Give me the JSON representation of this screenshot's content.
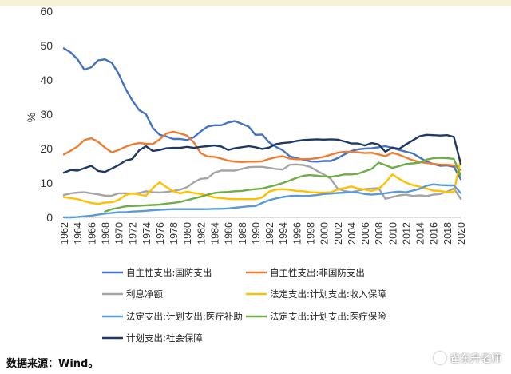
{
  "chart_data": {
    "type": "line",
    "ylabel": "%",
    "ylim": [
      0,
      60
    ],
    "yticks": [
      0,
      10,
      20,
      30,
      40,
      50,
      60
    ],
    "xticks": [
      "1962",
      "1964",
      "1966",
      "1968",
      "1970",
      "1972",
      "1974",
      "1976",
      "1978",
      "1980",
      "1982",
      "1984",
      "1986",
      "1988",
      "1990",
      "1992",
      "1994",
      "1996",
      "1998",
      "2000",
      "2002",
      "2004",
      "2006",
      "2008",
      "2010",
      "2012",
      "2014",
      "2016",
      "2018",
      "2020"
    ],
    "x": [
      1962,
      1963,
      1964,
      1965,
      1966,
      1967,
      1968,
      1969,
      1970,
      1971,
      1972,
      1973,
      1974,
      1975,
      1976,
      1977,
      1978,
      1979,
      1980,
      1981,
      1982,
      1983,
      1984,
      1985,
      1986,
      1987,
      1988,
      1989,
      1990,
      1991,
      1992,
      1993,
      1994,
      1995,
      1996,
      1997,
      1998,
      1999,
      2000,
      2001,
      2002,
      2003,
      2004,
      2005,
      2006,
      2007,
      2008,
      2009,
      2010,
      2011,
      2012,
      2013,
      2014,
      2015,
      2016,
      2017,
      2018,
      2019,
      2020
    ],
    "series": [
      {
        "name": "自主性支出:国防支出",
        "color": "#4472c4",
        "values": [
          49.2,
          48,
          46,
          43,
          43.7,
          45.7,
          46,
          45,
          41.8,
          37.5,
          34,
          31.2,
          30,
          26,
          24,
          23.5,
          22.8,
          22.8,
          22.5,
          23.3,
          25,
          26.4,
          26.8,
          26.8,
          27.6,
          28,
          27.2,
          26.4,
          24,
          24.1,
          21.8,
          20.5,
          19.5,
          17.8,
          17.2,
          16.8,
          16.3,
          16.2,
          16.4,
          16.4,
          17.2,
          18.3,
          19.3,
          19.8,
          20,
          20.1,
          20.4,
          20.7,
          20.2,
          19.6,
          19.1,
          18.6,
          17.4,
          16.2,
          15.5,
          15,
          15.1,
          14.7,
          11.1
        ]
      },
      {
        "name": "自主性支出:非国防支出",
        "color": "#ed7d31",
        "values": [
          18.3,
          19.4,
          20.6,
          22.5,
          23,
          22,
          20.3,
          18.9,
          19.6,
          20.5,
          21.2,
          21.6,
          21.4,
          21.3,
          22.7,
          24.4,
          24.9,
          24.4,
          23.8,
          21.8,
          18.7,
          17.7,
          17.6,
          17.1,
          16.5,
          16.2,
          16.1,
          16.2,
          16.2,
          16.3,
          17,
          17.5,
          17.8,
          17.1,
          16.9,
          16.9,
          17,
          17.2,
          17.6,
          18.2,
          18.8,
          19.1,
          19.1,
          18.9,
          18.7,
          18.8,
          18.3,
          17.8,
          18.8,
          18.2,
          17.4,
          16.6,
          16.1,
          15.8,
          15.6,
          15.3,
          15.3,
          15.1,
          13.8
        ]
      },
      {
        "name": "利息净额",
        "color": "#a5a5a5",
        "values": [
          6.5,
          7,
          7.2,
          7.3,
          7,
          6.7,
          6.3,
          6.3,
          7,
          7,
          6.9,
          7.1,
          7.6,
          7.3,
          7.2,
          7.4,
          7.7,
          8.1,
          8.8,
          10.2,
          11.2,
          11.4,
          13,
          13.6,
          13.6,
          13.6,
          14.1,
          14.6,
          14.7,
          14.7,
          14.4,
          14.1,
          13.9,
          15.3,
          15.4,
          15.2,
          14.7,
          13.5,
          12.5,
          11.2,
          8.4,
          7.7,
          7.3,
          7.8,
          8.2,
          8.4,
          8.5,
          5.4,
          5.9,
          6.4,
          6.6,
          6.2,
          6.4,
          6.2,
          6.6,
          6.8,
          7.5,
          8.4,
          5.4
        ]
      },
      {
        "name": "法定支出:计划支出:收入保障",
        "color": "#ffc000",
        "values": [
          5.9,
          5.6,
          5.3,
          4.7,
          4.2,
          3.9,
          4.3,
          4.4,
          5.1,
          6.5,
          7,
          6.6,
          6.3,
          8.5,
          10.2,
          8.8,
          7.6,
          7,
          7.5,
          7.1,
          6.8,
          6.4,
          5.8,
          5.6,
          5.4,
          5.3,
          5.3,
          5.3,
          5.3,
          5.8,
          7.5,
          8.1,
          8.2,
          8,
          7.7,
          7.6,
          7.3,
          7.2,
          7.2,
          7.3,
          8.1,
          8.5,
          9,
          8.4,
          8.1,
          7.7,
          8.3,
          10.1,
          12.5,
          11.2,
          10.1,
          9.4,
          8.9,
          8.4,
          7.8,
          7.7,
          7.3,
          7.4,
          16.8
        ]
      },
      {
        "name": "法定支出:计划支出:医疗补助",
        "color": "#5b9bd5",
        "values": [
          0,
          0,
          0.1,
          0.3,
          0.5,
          0.8,
          1.1,
          1.3,
          1.5,
          1.5,
          1.7,
          1.8,
          1.9,
          2.1,
          2.2,
          2.3,
          2.4,
          2.4,
          2.4,
          2.4,
          2.4,
          2.4,
          2.5,
          2.5,
          2.6,
          2.8,
          3,
          3.2,
          3.3,
          4.2,
          5,
          5.5,
          5.9,
          6.2,
          6.3,
          6.2,
          6.3,
          6.5,
          6.8,
          6.9,
          7.1,
          7.2,
          7.3,
          7.2,
          6.8,
          6.6,
          6.8,
          7,
          7.3,
          7.5,
          7.3,
          7.8,
          8.3,
          9.2,
          9.6,
          9.4,
          9.3,
          9.3,
          7.1
        ]
      },
      {
        "name": "法定支出:计划支出:医疗保险",
        "color": "#70ad47",
        "values": [
          null,
          null,
          null,
          null,
          null,
          null,
          1.7,
          2.4,
          2.8,
          3.2,
          3.3,
          3.4,
          3.5,
          3.6,
          3.7,
          4,
          4.2,
          4.5,
          5,
          5.5,
          6,
          6.6,
          7.1,
          7.3,
          7.4,
          7.6,
          7.7,
          8,
          8.2,
          8.4,
          8.9,
          9.4,
          10,
          10.7,
          11.5,
          12.1,
          12.3,
          12.1,
          11.9,
          11.8,
          12.1,
          12.5,
          12.5,
          12.7,
          13.4,
          14.1,
          15.9,
          15.2,
          14.4,
          14.9,
          15.5,
          15.7,
          15.9,
          16.8,
          17.2,
          17.3,
          17.2,
          17,
          12.1
        ]
      },
      {
        "name": "计划支出:社会保障",
        "color": "#1f3864",
        "values": [
          13,
          13.8,
          13.6,
          14.3,
          15,
          13.5,
          13.2,
          14.2,
          15.2,
          16.5,
          17,
          19.5,
          20.7,
          19.3,
          19.6,
          20.1,
          20.2,
          20.2,
          20.5,
          20.2,
          20.5,
          20.7,
          20.9,
          20.6,
          19.6,
          20.1,
          20.4,
          20.7,
          20.4,
          19.9,
          20.3,
          21.3,
          21.6,
          21.8,
          22.2,
          22.5,
          22.6,
          22.7,
          22.6,
          22.7,
          22.6,
          22.1,
          21.5,
          21.5,
          20.9,
          21.6,
          21.2,
          19.1,
          20.3,
          19.9,
          21.2,
          22.4,
          23.6,
          24,
          23.9,
          23.8,
          23.9,
          23.4,
          15.6
        ]
      }
    ]
  },
  "legend_title_source": "数据来源：Wind。",
  "watermark": "雀东升老师"
}
